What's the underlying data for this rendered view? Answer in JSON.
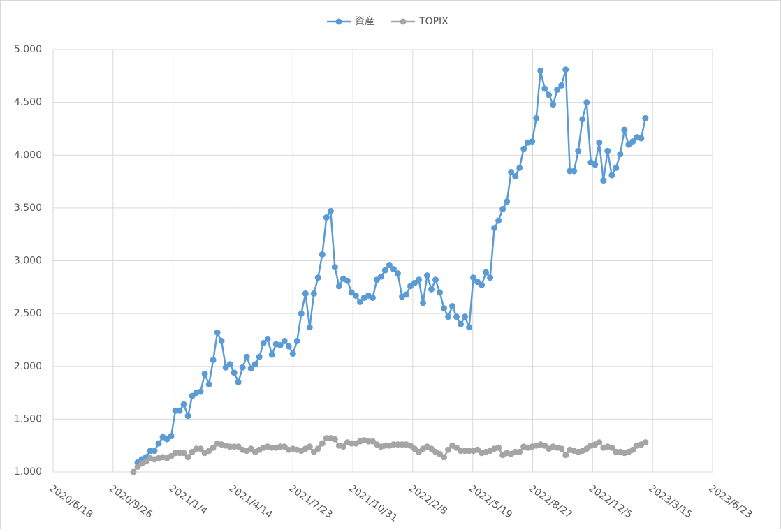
{
  "chart_data": {
    "type": "line",
    "x": [
      "2020/10/30",
      "2020/11/6",
      "2020/11/13",
      "2020/11/20",
      "2020/11/27",
      "2020/12/4",
      "2020/12/11",
      "2020/12/18",
      "2020/12/25",
      "2021/1/1",
      "2021/1/8",
      "2021/1/15",
      "2021/1/22",
      "2021/1/29",
      "2021/2/5",
      "2021/2/12",
      "2021/2/19",
      "2021/2/26",
      "2021/3/5",
      "2021/3/12",
      "2021/3/19",
      "2021/3/26",
      "2021/4/2",
      "2021/4/9",
      "2021/4/16",
      "2021/4/23",
      "2021/4/30",
      "2021/5/7",
      "2021/5/14",
      "2021/5/21",
      "2021/5/28",
      "2021/6/4",
      "2021/6/11",
      "2021/6/18",
      "2021/6/25",
      "2021/7/2",
      "2021/7/9",
      "2021/7/16",
      "2021/7/23",
      "2021/7/30",
      "2021/8/6",
      "2021/8/13",
      "2021/8/20",
      "2021/8/27",
      "2021/9/3",
      "2021/9/10",
      "2021/9/17",
      "2021/9/24",
      "2021/10/1",
      "2021/10/8",
      "2021/10/15",
      "2021/10/22",
      "2021/10/29",
      "2021/11/5",
      "2021/11/12",
      "2021/11/19",
      "2021/11/26",
      "2021/12/3",
      "2021/12/10",
      "2021/12/17",
      "2021/12/24",
      "2021/12/31",
      "2022/1/7",
      "2022/1/14",
      "2022/1/21",
      "2022/1/28",
      "2022/2/4",
      "2022/2/11",
      "2022/2/18",
      "2022/2/25",
      "2022/3/4",
      "2022/3/11",
      "2022/3/18",
      "2022/3/25",
      "2022/4/1",
      "2022/4/8",
      "2022/4/15",
      "2022/4/22",
      "2022/4/29",
      "2022/5/6",
      "2022/5/13",
      "2022/5/20",
      "2022/5/27",
      "2022/6/3",
      "2022/6/10",
      "2022/6/17",
      "2022/6/24",
      "2022/7/1",
      "2022/7/8",
      "2022/7/15",
      "2022/7/22",
      "2022/7/29",
      "2022/8/5",
      "2022/8/12",
      "2022/8/19",
      "2022/8/26",
      "2022/9/2",
      "2022/9/9",
      "2022/9/16",
      "2022/9/23",
      "2022/9/30",
      "2022/10/7",
      "2022/10/14",
      "2022/10/21",
      "2022/10/28",
      "2022/11/4",
      "2022/11/11",
      "2022/11/18",
      "2022/11/25",
      "2022/12/2",
      "2022/12/9",
      "2022/12/16",
      "2022/12/23",
      "2022/12/30",
      "2023/1/6",
      "2023/1/13",
      "2023/1/20",
      "2023/1/27",
      "2023/2/3",
      "2023/2/10",
      "2023/2/17",
      "2023/2/24",
      "2023/3/3"
    ],
    "series": [
      {
        "name": "資産",
        "color": "#5b9bd5",
        "values": [
          null,
          1.09,
          1.12,
          1.14,
          1.2,
          1.2,
          1.27,
          1.33,
          1.31,
          1.34,
          1.58,
          1.58,
          1.64,
          1.53,
          1.72,
          1.75,
          1.76,
          1.93,
          1.83,
          2.06,
          2.32,
          2.24,
          1.99,
          2.02,
          1.94,
          1.85,
          1.99,
          2.09,
          1.98,
          2.02,
          2.09,
          2.22,
          2.26,
          2.11,
          2.21,
          2.2,
          2.24,
          2.19,
          2.12,
          2.24,
          2.5,
          2.69,
          2.37,
          2.69,
          2.84,
          3.06,
          3.41,
          3.47,
          2.94,
          2.76,
          2.83,
          2.81,
          2.7,
          2.67,
          2.61,
          2.65,
          2.67,
          2.65,
          2.82,
          2.85,
          2.91,
          2.96,
          2.92,
          2.88,
          2.66,
          2.68,
          2.76,
          2.79,
          2.82,
          2.6,
          2.86,
          2.73,
          2.82,
          2.7,
          2.55,
          2.47,
          2.57,
          2.47,
          2.4,
          2.47,
          2.37,
          2.84,
          2.8,
          2.77,
          2.89,
          2.84,
          3.31,
          3.38,
          3.49,
          3.56,
          3.84,
          3.8,
          3.88,
          4.06,
          4.12,
          4.13,
          4.35,
          4.8,
          4.63,
          4.57,
          4.48,
          4.62,
          4.66,
          4.81,
          3.85,
          3.85,
          4.04,
          4.34,
          4.5,
          3.93,
          3.91,
          4.12,
          3.76,
          4.04,
          3.81,
          3.88,
          4.01,
          4.24,
          4.1,
          4.13,
          4.17,
          4.16,
          4.35
        ]
      },
      {
        "name": "TOPIX",
        "color": "#a5a5a5",
        "values": [
          1.0,
          1.05,
          1.08,
          1.1,
          1.13,
          1.12,
          1.13,
          1.14,
          1.13,
          1.15,
          1.18,
          1.18,
          1.18,
          1.14,
          1.19,
          1.22,
          1.22,
          1.18,
          1.2,
          1.23,
          1.27,
          1.26,
          1.25,
          1.24,
          1.24,
          1.24,
          1.21,
          1.2,
          1.22,
          1.19,
          1.21,
          1.23,
          1.24,
          1.23,
          1.23,
          1.24,
          1.24,
          1.21,
          1.22,
          1.21,
          1.2,
          1.22,
          1.24,
          1.19,
          1.22,
          1.27,
          1.32,
          1.32,
          1.31,
          1.25,
          1.24,
          1.28,
          1.27,
          1.27,
          1.29,
          1.3,
          1.29,
          1.29,
          1.26,
          1.24,
          1.25,
          1.25,
          1.26,
          1.26,
          1.26,
          1.26,
          1.25,
          1.22,
          1.19,
          1.22,
          1.24,
          1.22,
          1.19,
          1.17,
          1.14,
          1.21,
          1.25,
          1.23,
          1.2,
          1.2,
          1.2,
          1.2,
          1.21,
          1.18,
          1.19,
          1.2,
          1.22,
          1.23,
          1.16,
          1.18,
          1.17,
          1.19,
          1.19,
          1.24,
          1.23,
          1.24,
          1.25,
          1.26,
          1.25,
          1.22,
          1.24,
          1.23,
          1.22,
          1.16,
          1.21,
          1.2,
          1.19,
          1.2,
          1.22,
          1.25,
          1.26,
          1.28,
          1.23,
          1.24,
          1.23,
          1.19,
          1.19,
          1.18,
          1.19,
          1.21,
          1.25,
          1.26,
          1.28
        ]
      }
    ],
    "xlim": [
      "2020/6/18",
      "2023/6/23"
    ],
    "xticks": [
      "2020/6/18",
      "2020/9/26",
      "2021/1/4",
      "2021/4/14",
      "2021/7/23",
      "2021/10/31",
      "2022/2/8",
      "2022/5/19",
      "2022/8/27",
      "2022/12/5",
      "2023/3/15",
      "2023/6/23"
    ],
    "ylim": [
      1,
      5
    ],
    "yticks": [
      {
        "value": 1,
        "label": "1.000"
      },
      {
        "value": 1.5,
        "label": "1.500"
      },
      {
        "value": 2,
        "label": "2.000"
      },
      {
        "value": 2.5,
        "label": "2.500"
      },
      {
        "value": 3,
        "label": "3.000"
      },
      {
        "value": 3.5,
        "label": "3.500"
      },
      {
        "value": 4,
        "label": "4.000"
      },
      {
        "value": 4.5,
        "label": "4.500"
      },
      {
        "value": 5,
        "label": "5.000"
      }
    ],
    "grid": true,
    "legend": "top"
  }
}
